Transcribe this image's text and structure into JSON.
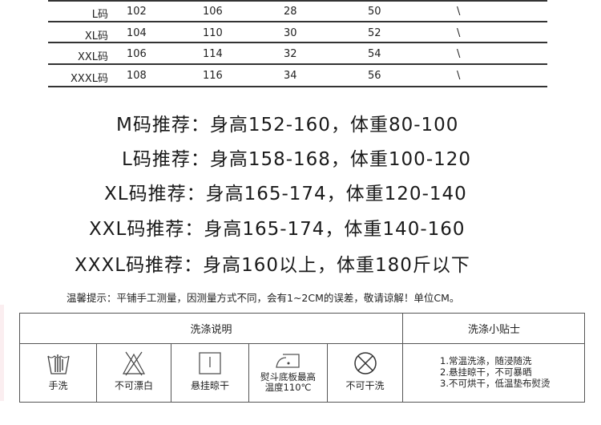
{
  "size_table": {
    "rows": [
      {
        "size": "L码",
        "c1": "102",
        "c2": "106",
        "c3": "28",
        "c4": "50",
        "c5": "\\"
      },
      {
        "size": "XL码",
        "c1": "104",
        "c2": "110",
        "c3": "30",
        "c4": "52",
        "c5": "\\"
      },
      {
        "size": "XXL码",
        "c1": "106",
        "c2": "114",
        "c3": "32",
        "c4": "54",
        "c5": "\\"
      },
      {
        "size": "XXXL码",
        "c1": "108",
        "c2": "116",
        "c3": "34",
        "c4": "56",
        "c5": "\\"
      }
    ]
  },
  "recommendations": [
    "M码推荐：身高152-160，体重80-100",
    "L码推荐：身高158-168，体重100-120",
    "XL码推荐：身高165-174，体重120-140",
    "XXL码推荐：身高165-174，体重140-160",
    "XXXL码推荐：身高160以上，体重180斤以下"
  ],
  "note": "温馨提示：平铺手工测量，因测量方式不同，会有1~2CM的误差，敬请谅解！单位CM。",
  "wash": {
    "title": "洗涤说明",
    "tips_title": "洗涤小贴士",
    "items": [
      {
        "icon": "hand-wash-icon",
        "label": "手洗"
      },
      {
        "icon": "no-bleach-icon",
        "label": "不可漂白"
      },
      {
        "icon": "hang-dry-icon",
        "label": "悬挂晾干"
      },
      {
        "icon": "iron-icon",
        "label": "熨斗底板最高温度110℃"
      },
      {
        "icon": "no-dry-clean-icon",
        "label": "不可干洗"
      }
    ],
    "tips": [
      "1.常温洗涤，随浸随洗",
      "2.悬挂晾干，不可暴晒",
      "3.不可烘干，低温垫布熨烫"
    ]
  }
}
